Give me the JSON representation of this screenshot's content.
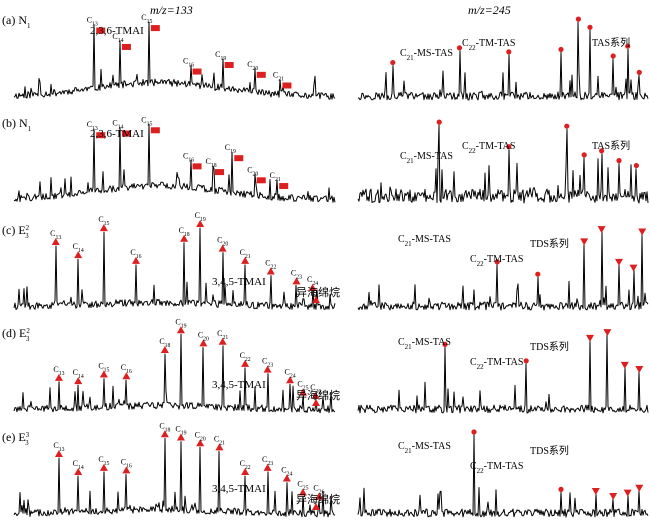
{
  "chart_data": [
    {
      "type": "line",
      "panel": "(a)",
      "sample": "N",
      "sample_sub": "1",
      "mz_label": "m/z=133",
      "series_label": "2,3,6-TMAI",
      "marker": "square",
      "right_mz_label": "m/z=245",
      "right_labels": [
        "C21-MS-TAS",
        "C22-TM-TAS",
        "TAS系列"
      ],
      "peaks": [
        {
          "label": "C13",
          "x": 0.25,
          "y": 0.92
        },
        {
          "label": "C14",
          "x": 0.33,
          "y": 0.72
        },
        {
          "label": "C15",
          "x": 0.42,
          "y": 0.95
        },
        {
          "label": "C16",
          "x": 0.55,
          "y": 0.42
        },
        {
          "label": "C19",
          "x": 0.65,
          "y": 0.5
        },
        {
          "label": "C20",
          "x": 0.75,
          "y": 0.38
        },
        {
          "label": "C21",
          "x": 0.83,
          "y": 0.25
        }
      ],
      "right_peaks": [
        {
          "x": 0.12,
          "y": 0.42
        },
        {
          "x": 0.35,
          "y": 0.6
        },
        {
          "x": 0.52,
          "y": 0.55
        },
        {
          "x": 0.7,
          "y": 0.58
        },
        {
          "x": 0.76,
          "y": 0.95
        },
        {
          "x": 0.8,
          "y": 0.85
        },
        {
          "x": 0.88,
          "y": 0.5
        },
        {
          "x": 0.93,
          "y": 0.62
        },
        {
          "x": 0.97,
          "y": 0.3
        }
      ]
    },
    {
      "type": "line",
      "panel": "(b)",
      "sample": "N",
      "sample_sub": "1",
      "series_label": "2,3,6-TMAI",
      "marker": "square",
      "right_labels": [
        "C21-MS-TAS",
        "C22-TM-TAS",
        "TAS系列"
      ],
      "peaks": [
        {
          "label": "C13",
          "x": 0.25,
          "y": 0.9
        },
        {
          "label": "C14",
          "x": 0.33,
          "y": 0.92
        },
        {
          "label": "C15",
          "x": 0.42,
          "y": 0.96
        },
        {
          "label": "C16",
          "x": 0.55,
          "y": 0.52
        },
        {
          "label": "C18",
          "x": 0.62,
          "y": 0.45
        },
        {
          "label": "C19",
          "x": 0.68,
          "y": 0.62
        },
        {
          "label": "C20",
          "x": 0.75,
          "y": 0.35
        },
        {
          "label": "C21",
          "x": 0.82,
          "y": 0.28
        }
      ],
      "right_peaks": [
        {
          "x": 0.28,
          "y": 0.95
        },
        {
          "x": 0.52,
          "y": 0.65
        },
        {
          "x": 0.72,
          "y": 0.9
        },
        {
          "x": 0.78,
          "y": 0.55
        },
        {
          "x": 0.84,
          "y": 0.6
        },
        {
          "x": 0.9,
          "y": 0.48
        },
        {
          "x": 0.96,
          "y": 0.42
        }
      ]
    },
    {
      "type": "line",
      "panel": "(c)",
      "sample": "E",
      "sample_sub": "3",
      "sample_sup": "2",
      "series_label": "3,4,5-TMAI",
      "marker": "triangle",
      "annotation": "异海绵烷",
      "right_labels": [
        "C21-MS-TAS",
        "C22-TM-TAS",
        "TDS系列"
      ],
      "peaks": [
        {
          "label": "C13",
          "x": 0.13,
          "y": 0.78
        },
        {
          "label": "C14",
          "x": 0.2,
          "y": 0.62
        },
        {
          "label": "C15",
          "x": 0.28,
          "y": 0.95
        },
        {
          "label": "C16",
          "x": 0.38,
          "y": 0.55
        },
        {
          "label": "C18",
          "x": 0.53,
          "y": 0.82
        },
        {
          "label": "C19",
          "x": 0.58,
          "y": 1.0
        },
        {
          "label": "C20",
          "x": 0.65,
          "y": 0.7
        },
        {
          "label": "C21",
          "x": 0.72,
          "y": 0.55
        },
        {
          "label": "C22",
          "x": 0.8,
          "y": 0.42
        },
        {
          "label": "C23",
          "x": 0.88,
          "y": 0.3
        },
        {
          "label": "C24",
          "x": 0.93,
          "y": 0.22
        }
      ],
      "right_peaks": [
        {
          "x": 0.48,
          "y": 0.55
        },
        {
          "x": 0.62,
          "y": 0.4
        },
        {
          "x": 0.78,
          "y": 0.8
        },
        {
          "x": 0.84,
          "y": 0.95
        },
        {
          "x": 0.9,
          "y": 0.55
        },
        {
          "x": 0.95,
          "y": 0.48
        },
        {
          "x": 0.98,
          "y": 0.92
        }
      ]
    },
    {
      "type": "line",
      "panel": "(d)",
      "sample": "E",
      "sample_sub": "3",
      "sample_sup": "2",
      "series_label": "3,4,5-TMAI",
      "marker": "triangle",
      "annotation": "异海绵烷",
      "right_labels": [
        "C21-MS-TAS",
        "C22-TM-TAS",
        "TDS系列"
      ],
      "peaks": [
        {
          "label": "C13",
          "x": 0.14,
          "y": 0.38
        },
        {
          "label": "C14",
          "x": 0.2,
          "y": 0.34
        },
        {
          "label": "C15",
          "x": 0.28,
          "y": 0.42
        },
        {
          "label": "C16",
          "x": 0.35,
          "y": 0.4
        },
        {
          "label": "C18",
          "x": 0.47,
          "y": 0.72
        },
        {
          "label": "C19",
          "x": 0.52,
          "y": 0.96
        },
        {
          "label": "C20",
          "x": 0.59,
          "y": 0.8
        },
        {
          "label": "C21",
          "x": 0.65,
          "y": 0.82
        },
        {
          "label": "C22",
          "x": 0.72,
          "y": 0.55
        },
        {
          "label": "C23",
          "x": 0.79,
          "y": 0.48
        },
        {
          "label": "C24",
          "x": 0.86,
          "y": 0.35
        },
        {
          "label": "C25",
          "x": 0.9,
          "y": 0.2
        },
        {
          "label": "C26",
          "x": 0.94,
          "y": 0.16
        }
      ],
      "right_peaks": [
        {
          "x": 0.3,
          "y": 0.8
        },
        {
          "x": 0.58,
          "y": 0.6
        },
        {
          "x": 0.8,
          "y": 0.88
        },
        {
          "x": 0.86,
          "y": 0.95
        },
        {
          "x": 0.92,
          "y": 0.55
        },
        {
          "x": 0.97,
          "y": 0.5
        }
      ]
    },
    {
      "type": "line",
      "panel": "(e)",
      "sample": "E",
      "sample_sub": "3",
      "sample_sup": "3",
      "series_label": "3,4,5-TMAI",
      "marker": "triangle",
      "annotation": "异海绵烷",
      "right_labels": [
        "C21-MS-TAS",
        "C22-TM-TAS",
        "TDS系列"
      ],
      "peaks": [
        {
          "label": "C13",
          "x": 0.14,
          "y": 0.72
        },
        {
          "label": "C14",
          "x": 0.2,
          "y": 0.5
        },
        {
          "label": "C15",
          "x": 0.28,
          "y": 0.55
        },
        {
          "label": "C16",
          "x": 0.35,
          "y": 0.52
        },
        {
          "label": "C18",
          "x": 0.47,
          "y": 0.96
        },
        {
          "label": "C19",
          "x": 0.52,
          "y": 0.92
        },
        {
          "label": "C20",
          "x": 0.58,
          "y": 0.85
        },
        {
          "label": "C21",
          "x": 0.64,
          "y": 0.8
        },
        {
          "label": "C22",
          "x": 0.72,
          "y": 0.5
        },
        {
          "label": "C23",
          "x": 0.79,
          "y": 0.55
        },
        {
          "label": "C24",
          "x": 0.85,
          "y": 0.42
        },
        {
          "label": "C25",
          "x": 0.9,
          "y": 0.25
        },
        {
          "label": "C26",
          "x": 0.95,
          "y": 0.2
        }
      ],
      "right_peaks": [
        {
          "x": 0.4,
          "y": 1.0
        },
        {
          "x": 0.7,
          "y": 0.3
        },
        {
          "x": 0.82,
          "y": 0.28
        },
        {
          "x": 0.88,
          "y": 0.22
        },
        {
          "x": 0.93,
          "y": 0.26
        },
        {
          "x": 0.97,
          "y": 0.32
        }
      ]
    }
  ]
}
